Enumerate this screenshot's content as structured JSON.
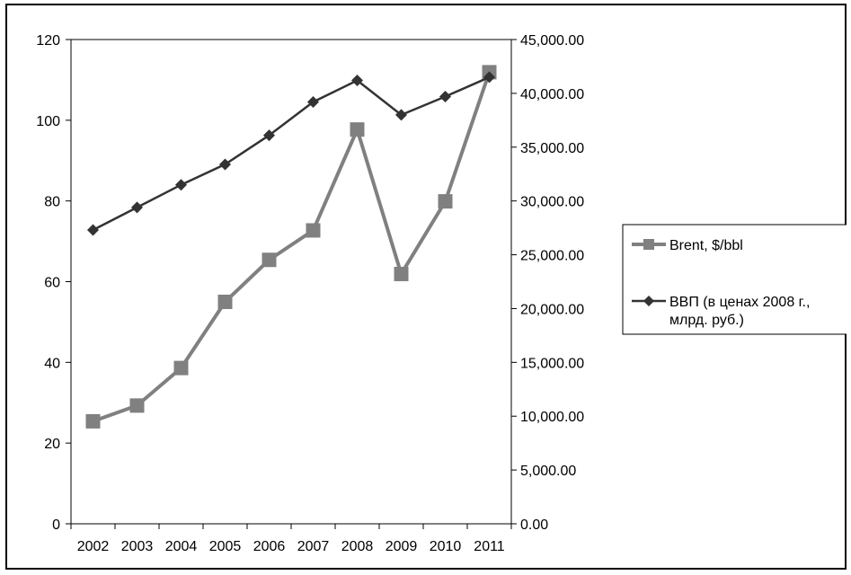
{
  "chart_data": {
    "type": "line",
    "title": "",
    "categories": [
      "2002",
      "2003",
      "2004",
      "2005",
      "2006",
      "2007",
      "2008",
      "2009",
      "2010",
      "2011"
    ],
    "y_left": {
      "min": 0,
      "max": 120,
      "step": 20,
      "ticks": [
        "0",
        "20",
        "40",
        "60",
        "80",
        "100",
        "120"
      ]
    },
    "y_right": {
      "min": 0,
      "max": 45000,
      "step": 5000,
      "ticks": [
        "0.00",
        "5,000.00",
        "10,000.00",
        "15,000.00",
        "20,000.00",
        "25,000.00",
        "30,000.00",
        "35,000.00",
        "40,000.00",
        "45,000.00"
      ]
    },
    "series": [
      {
        "name": "Brent, $/bbl",
        "axis": "left",
        "color": "#808080",
        "marker": "square",
        "values": [
          25.4,
          29.3,
          38.6,
          55.0,
          65.4,
          72.7,
          97.7,
          61.9,
          79.9,
          111.9
        ]
      },
      {
        "name": "ВВП (в ценах 2008 г., млрд. руб.)",
        "axis": "right",
        "color": "#333333",
        "marker": "diamond",
        "values": [
          27300,
          29400,
          31500,
          33400,
          36100,
          39200,
          41200,
          38000,
          39700,
          41500
        ]
      }
    ],
    "legend": {
      "position": "right",
      "entries": [
        {
          "lines": [
            "Brent, $/bbl"
          ]
        },
        {
          "lines": [
            "ВВП (в ценах 2008 г.,",
            "млрд. руб.)"
          ]
        }
      ]
    },
    "grid": false
  }
}
